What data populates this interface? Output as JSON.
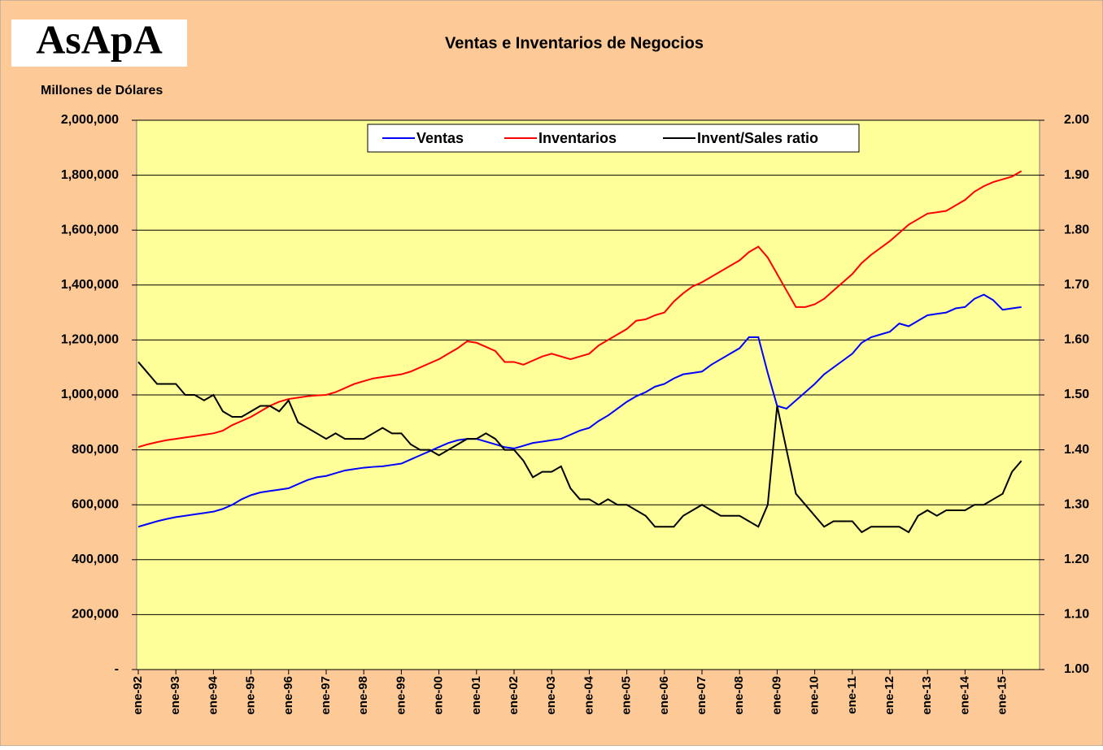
{
  "logo": "AsApA",
  "chart_data": {
    "type": "line",
    "title": "Ventas e Inventarios de Negocios",
    "ylabel": "Millones de Dólares",
    "categories": [
      "ene-92",
      null,
      null,
      null,
      "ene-93",
      null,
      null,
      null,
      "ene-94",
      null,
      null,
      null,
      "ene-95",
      null,
      null,
      null,
      "ene-96",
      null,
      null,
      null,
      "ene-97",
      null,
      null,
      null,
      "ene-98",
      null,
      null,
      null,
      "ene-99",
      null,
      null,
      null,
      "ene-00",
      null,
      null,
      null,
      "ene-01",
      null,
      null,
      null,
      "ene-02",
      null,
      null,
      null,
      "ene-03",
      null,
      null,
      null,
      "ene-04",
      null,
      null,
      null,
      "ene-05",
      null,
      null,
      null,
      "ene-06",
      null,
      null,
      null,
      "ene-07",
      null,
      null,
      null,
      "ene-08",
      null,
      null,
      null,
      "ene-09",
      null,
      null,
      null,
      "ene-10",
      null,
      null,
      null,
      "ene-11",
      null,
      null,
      null,
      "ene-12",
      null,
      null,
      null,
      "ene-13",
      null,
      null,
      null,
      "ene-14",
      null,
      null,
      null,
      "ene-15",
      null,
      null
    ],
    "series": [
      {
        "name": "Ventas",
        "color": "#0000ff",
        "values": [
          520000,
          530000,
          540000,
          548000,
          555000,
          560000,
          565000,
          570000,
          575000,
          585000,
          600000,
          620000,
          635000,
          645000,
          650000,
          655000,
          660000,
          675000,
          690000,
          700000,
          705000,
          715000,
          725000,
          730000,
          735000,
          738000,
          740000,
          745000,
          750000,
          765000,
          780000,
          795000,
          810000,
          825000,
          835000,
          840000,
          840000,
          830000,
          820000,
          810000,
          805000,
          815000,
          825000,
          830000,
          835000,
          840000,
          855000,
          870000,
          880000,
          905000,
          925000,
          950000,
          975000,
          995000,
          1010000,
          1030000,
          1040000,
          1060000,
          1075000,
          1080000,
          1085000,
          1110000,
          1130000,
          1150000,
          1170000,
          1210000,
          1210000,
          1080000,
          960000,
          950000,
          980000,
          1010000,
          1040000,
          1075000,
          1100000,
          1125000,
          1150000,
          1190000,
          1210000,
          1220000,
          1230000,
          1260000,
          1250000,
          1270000,
          1290000,
          1295000,
          1300000,
          1315000,
          1320000,
          1350000,
          1365000,
          1345000,
          1310000,
          1315000,
          1320000
        ]
      },
      {
        "name": "Inventarios",
        "color": "#ff0000",
        "values": [
          810000,
          820000,
          828000,
          835000,
          840000,
          845000,
          850000,
          855000,
          860000,
          870000,
          890000,
          905000,
          920000,
          940000,
          960000,
          975000,
          985000,
          990000,
          995000,
          998000,
          1000000,
          1010000,
          1025000,
          1040000,
          1050000,
          1060000,
          1065000,
          1070000,
          1075000,
          1085000,
          1100000,
          1115000,
          1130000,
          1150000,
          1170000,
          1195000,
          1190000,
          1175000,
          1160000,
          1120000,
          1120000,
          1110000,
          1125000,
          1140000,
          1150000,
          1140000,
          1130000,
          1140000,
          1150000,
          1180000,
          1200000,
          1220000,
          1240000,
          1270000,
          1275000,
          1290000,
          1300000,
          1340000,
          1370000,
          1395000,
          1410000,
          1430000,
          1450000,
          1470000,
          1490000,
          1520000,
          1540000,
          1500000,
          1440000,
          1380000,
          1320000,
          1320000,
          1330000,
          1350000,
          1380000,
          1410000,
          1440000,
          1480000,
          1510000,
          1535000,
          1560000,
          1590000,
          1620000,
          1640000,
          1660000,
          1665000,
          1670000,
          1690000,
          1710000,
          1740000,
          1760000,
          1775000,
          1785000,
          1795000,
          1815000
        ]
      },
      {
        "name": "Invent/Sales ratio",
        "color": "#000000",
        "axis": "y2",
        "values": [
          1.56,
          1.54,
          1.52,
          1.52,
          1.52,
          1.5,
          1.5,
          1.49,
          1.5,
          1.47,
          1.46,
          1.46,
          1.47,
          1.48,
          1.48,
          1.47,
          1.49,
          1.45,
          1.44,
          1.43,
          1.42,
          1.43,
          1.42,
          1.42,
          1.42,
          1.43,
          1.44,
          1.43,
          1.43,
          1.41,
          1.4,
          1.4,
          1.39,
          1.4,
          1.41,
          1.42,
          1.42,
          1.43,
          1.42,
          1.4,
          1.4,
          1.38,
          1.35,
          1.36,
          1.36,
          1.37,
          1.33,
          1.31,
          1.31,
          1.3,
          1.31,
          1.3,
          1.3,
          1.29,
          1.28,
          1.26,
          1.26,
          1.26,
          1.28,
          1.29,
          1.3,
          1.29,
          1.28,
          1.28,
          1.28,
          1.27,
          1.26,
          1.3,
          1.48,
          1.4,
          1.32,
          1.3,
          1.28,
          1.26,
          1.27,
          1.27,
          1.27,
          1.25,
          1.26,
          1.26,
          1.26,
          1.26,
          1.25,
          1.28,
          1.29,
          1.28,
          1.29,
          1.29,
          1.29,
          1.3,
          1.3,
          1.31,
          1.32,
          1.36,
          1.38
        ]
      }
    ],
    "ylim": [
      0,
      2000000
    ],
    "yticks": [
      {
        "value": 0,
        "label": "-"
      },
      {
        "value": 200000,
        "label": "200,000"
      },
      {
        "value": 400000,
        "label": "400,000"
      },
      {
        "value": 600000,
        "label": "600,000"
      },
      {
        "value": 800000,
        "label": "800,000"
      },
      {
        "value": 1000000,
        "label": "1,000,000"
      },
      {
        "value": 1200000,
        "label": "1,200,000"
      },
      {
        "value": 1400000,
        "label": "1,400,000"
      },
      {
        "value": 1600000,
        "label": "1,600,000"
      },
      {
        "value": 1800000,
        "label": "1,800,000"
      },
      {
        "value": 2000000,
        "label": "2,000,000"
      }
    ],
    "y2lim": [
      1,
      2
    ],
    "y2ticks": [
      {
        "value": 1,
        "label": "1.00"
      },
      {
        "value": 1.1,
        "label": "1.10"
      },
      {
        "value": 1.2,
        "label": "1.20"
      },
      {
        "value": 1.3,
        "label": "1.30"
      },
      {
        "value": 1.4,
        "label": "1.40"
      },
      {
        "value": 1.5,
        "label": "1.50"
      },
      {
        "value": 1.6,
        "label": "1.60"
      },
      {
        "value": 1.7,
        "label": "1.70"
      },
      {
        "value": 1.8,
        "label": "1.80"
      },
      {
        "value": 1.9,
        "label": "1.90"
      },
      {
        "value": 2,
        "label": "2.00"
      }
    ],
    "grid": true,
    "legend": "top"
  }
}
